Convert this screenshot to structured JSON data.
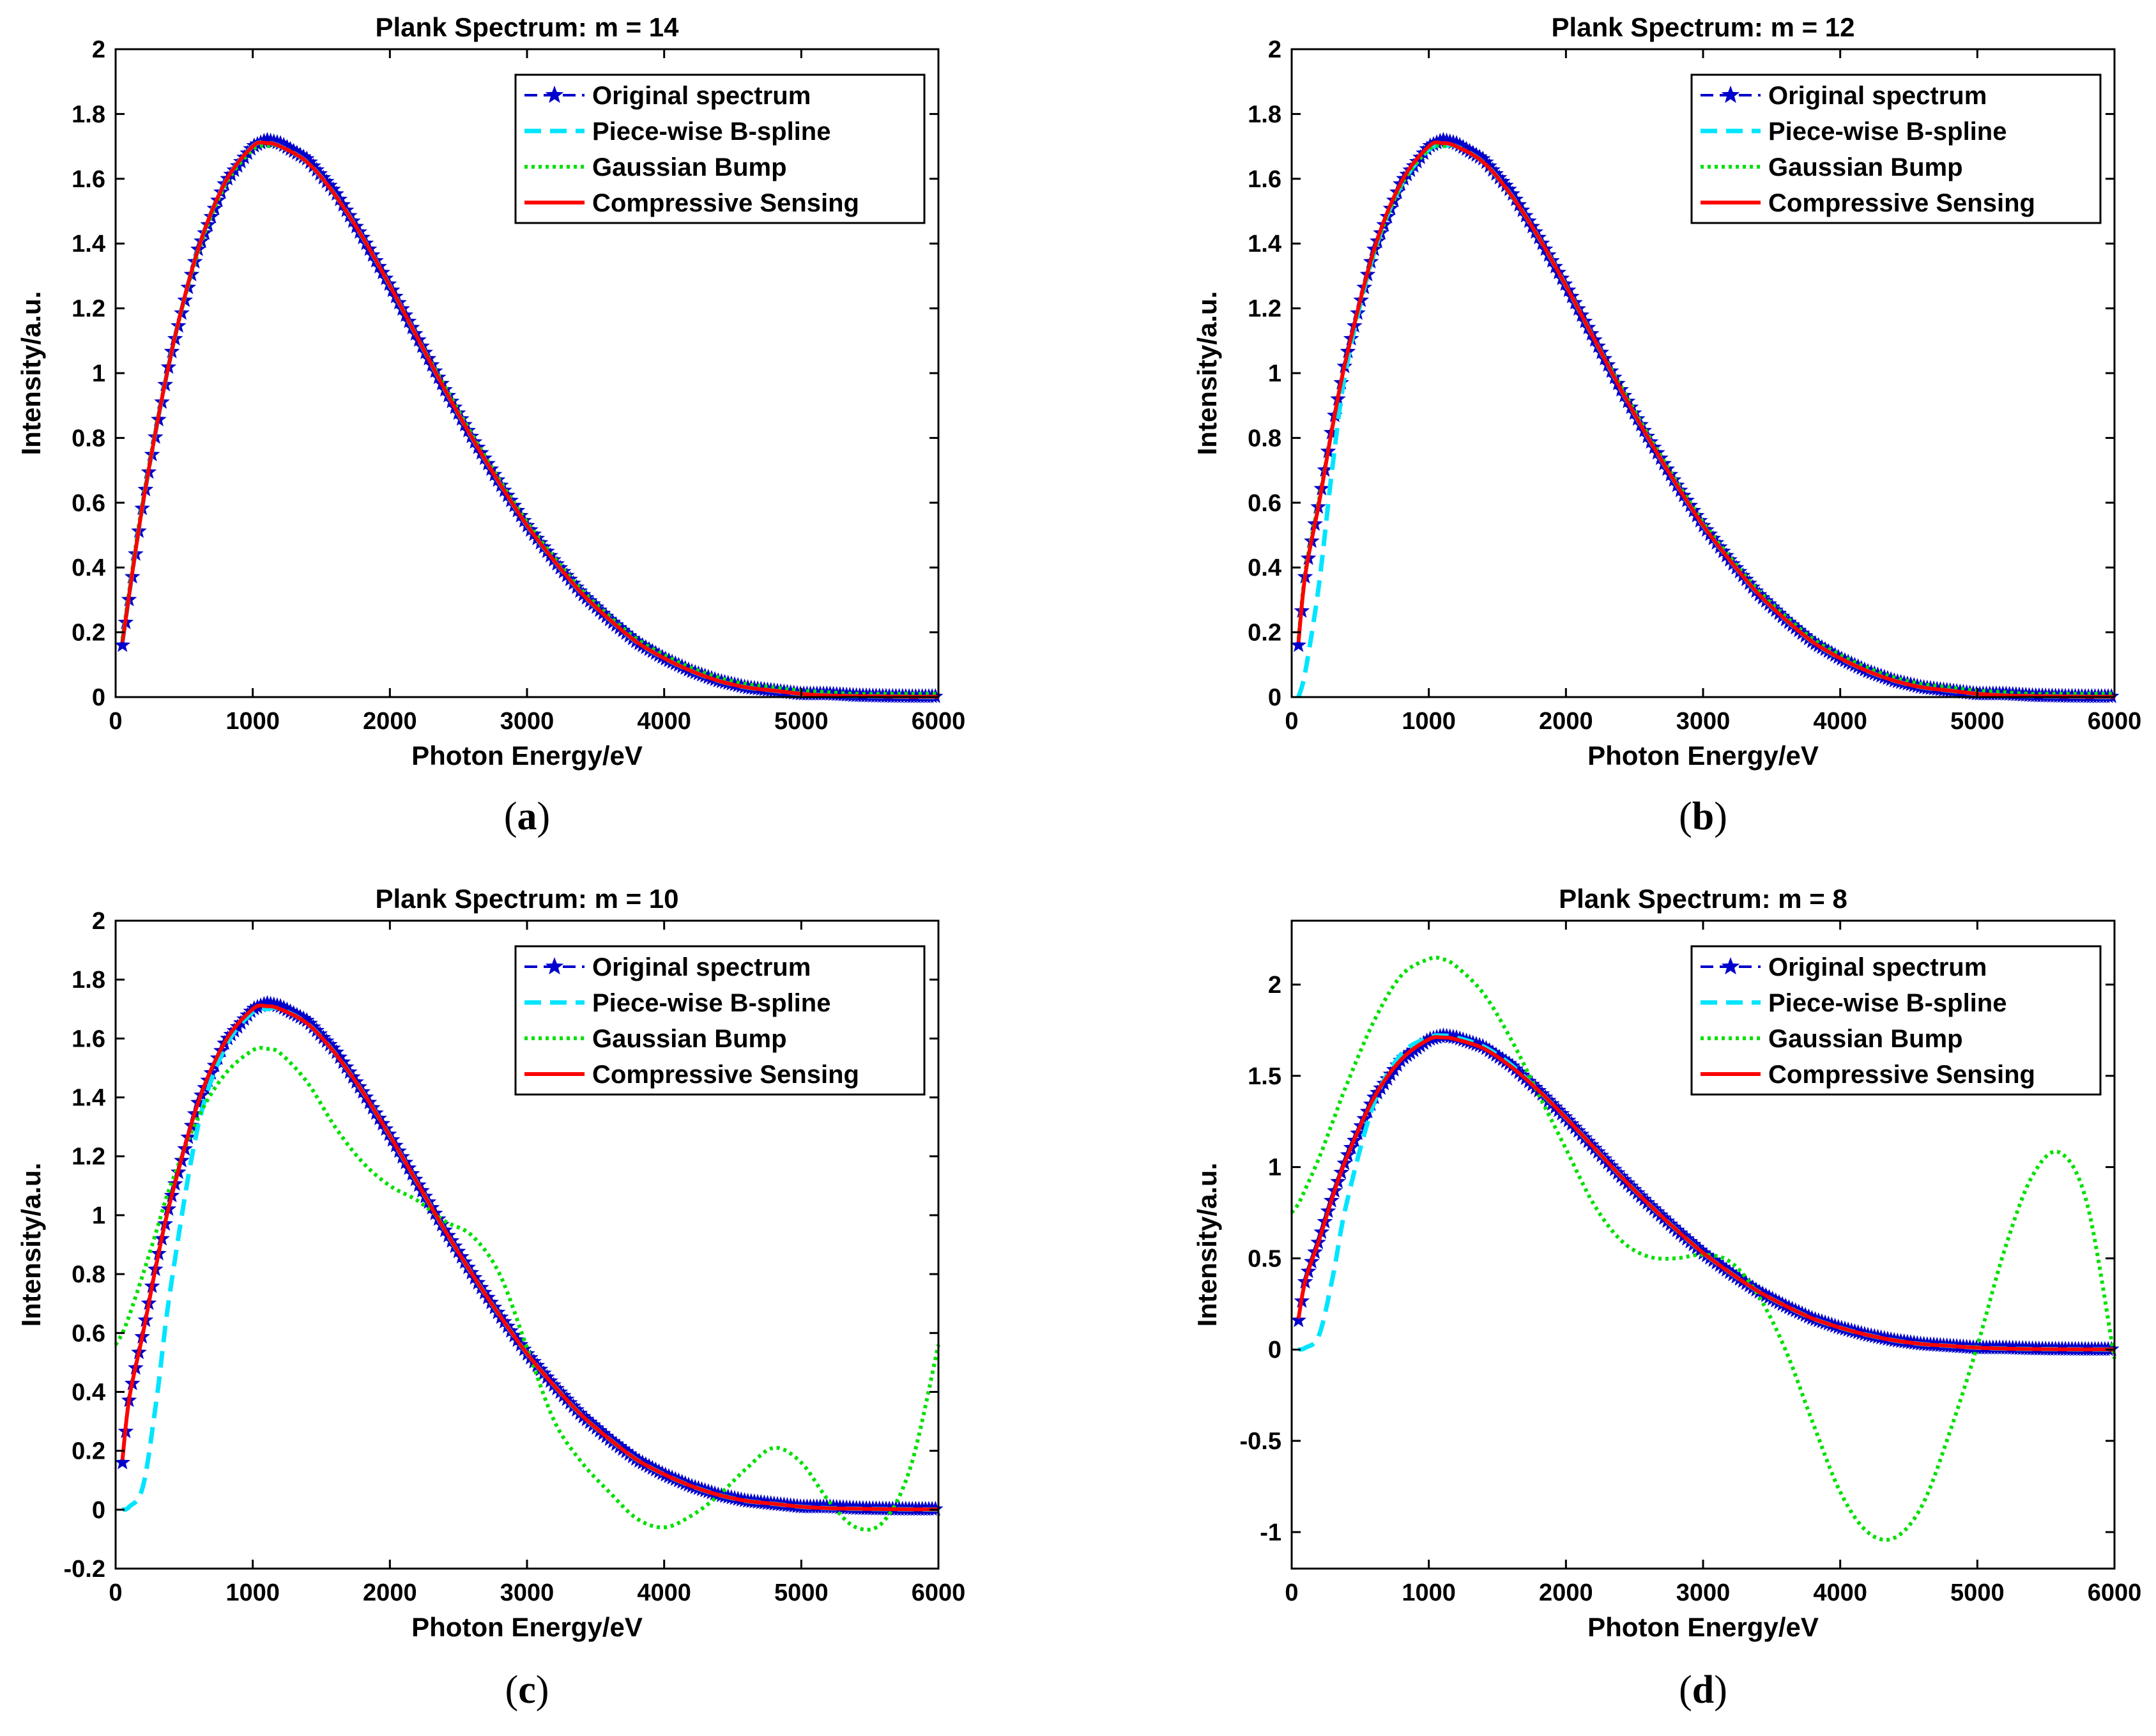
{
  "figure": {
    "colors": {
      "original": "#0000cc",
      "bspline": "#00e5ff",
      "gaussian": "#00e000",
      "cs": "#ff0000"
    }
  },
  "chart_data": [
    {
      "type": "line",
      "title": "Plank Spectrum: m = 14",
      "xlabel": "Photon Energy/eV",
      "ylabel": "Intensity/a.u.",
      "caption": "a",
      "xlim": [
        0,
        6000
      ],
      "ylim": [
        0,
        2
      ],
      "xticks": [
        0,
        1000,
        2000,
        3000,
        4000,
        5000,
        6000
      ],
      "yticks": [
        0,
        0.2,
        0.4,
        0.6,
        0.8,
        1,
        1.2,
        1.4,
        1.6,
        1.8,
        2
      ],
      "ytick_labels": [
        "0",
        "0.2",
        "0.4",
        "0.6",
        "0.8",
        "1",
        "1.2",
        "1.4",
        "1.6",
        "1.8",
        "2"
      ],
      "legend_position": "top-right",
      "x": [
        50,
        200,
        400,
        600,
        800,
        1000,
        1100,
        1200,
        1400,
        1600,
        1800,
        2000,
        2200,
        2400,
        2600,
        2800,
        3000,
        3200,
        3400,
        3600,
        3800,
        4000,
        4200,
        4400,
        4600,
        4800,
        5000,
        5200,
        5400,
        5600,
        5800,
        6000
      ],
      "series": [
        {
          "name": "Original spectrum",
          "key": "original",
          "values": [
            0.16,
            0.6,
            1.05,
            1.38,
            1.59,
            1.7,
            1.72,
            1.71,
            1.66,
            1.56,
            1.42,
            1.27,
            1.11,
            0.95,
            0.8,
            0.66,
            0.53,
            0.42,
            0.32,
            0.24,
            0.17,
            0.12,
            0.08,
            0.05,
            0.03,
            0.02,
            0.01,
            0.01,
            0.005,
            0.003,
            0.002,
            0.002
          ]
        },
        {
          "name": "Piece-wise B-spline",
          "key": "bspline",
          "values": [
            0.17,
            0.6,
            1.05,
            1.38,
            1.59,
            1.7,
            1.71,
            1.7,
            1.65,
            1.55,
            1.42,
            1.27,
            1.11,
            0.95,
            0.8,
            0.66,
            0.53,
            0.42,
            0.32,
            0.24,
            0.17,
            0.12,
            0.08,
            0.05,
            0.03,
            0.02,
            0.01,
            0.005,
            0.003,
            0.002,
            0.001,
            0.0
          ]
        },
        {
          "name": "Gaussian Bump",
          "key": "gaussian",
          "values": [
            0.18,
            0.61,
            1.05,
            1.37,
            1.58,
            1.69,
            1.7,
            1.7,
            1.65,
            1.55,
            1.42,
            1.27,
            1.11,
            0.96,
            0.81,
            0.67,
            0.54,
            0.43,
            0.33,
            0.25,
            0.18,
            0.13,
            0.09,
            0.06,
            0.04,
            0.03,
            0.02,
            0.015,
            0.01,
            0.01,
            0.01,
            0.01
          ]
        },
        {
          "name": "Compressive Sensing",
          "key": "cs",
          "values": [
            0.17,
            0.6,
            1.05,
            1.38,
            1.59,
            1.7,
            1.71,
            1.7,
            1.65,
            1.55,
            1.42,
            1.27,
            1.11,
            0.95,
            0.8,
            0.66,
            0.53,
            0.42,
            0.32,
            0.24,
            0.17,
            0.12,
            0.08,
            0.05,
            0.03,
            0.02,
            0.01,
            0.005,
            0.003,
            0.002,
            0.001,
            0.001
          ]
        }
      ]
    },
    {
      "type": "line",
      "title": "Plank Spectrum: m = 12",
      "xlabel": "Photon Energy/eV",
      "ylabel": "Intensity/a.u.",
      "caption": "b",
      "xlim": [
        0,
        6000
      ],
      "ylim": [
        0,
        2
      ],
      "xticks": [
        0,
        1000,
        2000,
        3000,
        4000,
        5000,
        6000
      ],
      "yticks": [
        0,
        0.2,
        0.4,
        0.6,
        0.8,
        1,
        1.2,
        1.4,
        1.6,
        1.8,
        2
      ],
      "ytick_labels": [
        "0",
        "0.2",
        "0.4",
        "0.6",
        "0.8",
        "1",
        "1.2",
        "1.4",
        "1.6",
        "1.8",
        "2"
      ],
      "legend_position": "top-right",
      "x": [
        50,
        100,
        200,
        300,
        400,
        600,
        800,
        1000,
        1100,
        1200,
        1400,
        1600,
        1800,
        2000,
        2200,
        2400,
        2600,
        2800,
        3000,
        3200,
        3400,
        3600,
        3800,
        4000,
        4200,
        4400,
        4600,
        4800,
        5000,
        5200,
        5400,
        5600,
        5800,
        6000
      ],
      "series": [
        {
          "name": "Original spectrum",
          "key": "original",
          "values": [
            0.16,
            0.38,
            0.6,
            0.84,
            1.05,
            1.38,
            1.59,
            1.7,
            1.72,
            1.71,
            1.66,
            1.56,
            1.42,
            1.27,
            1.11,
            0.95,
            0.8,
            0.66,
            0.53,
            0.42,
            0.32,
            0.24,
            0.17,
            0.12,
            0.08,
            0.05,
            0.03,
            0.02,
            0.01,
            0.01,
            0.005,
            0.003,
            0.002,
            0.002
          ]
        },
        {
          "name": "Piece-wise B-spline",
          "key": "bspline",
          "values": [
            0.0,
            0.08,
            0.35,
            0.72,
            1.02,
            1.37,
            1.58,
            1.69,
            1.7,
            1.7,
            1.65,
            1.55,
            1.42,
            1.27,
            1.11,
            0.95,
            0.8,
            0.66,
            0.53,
            0.42,
            0.32,
            0.24,
            0.17,
            0.12,
            0.08,
            0.05,
            0.03,
            0.02,
            0.01,
            0.005,
            0.003,
            0.002,
            0.001,
            0.0
          ]
        },
        {
          "name": "Gaussian Bump",
          "key": "gaussian",
          "values": [
            0.18,
            0.39,
            0.61,
            0.84,
            1.05,
            1.37,
            1.58,
            1.69,
            1.7,
            1.7,
            1.65,
            1.55,
            1.42,
            1.27,
            1.11,
            0.96,
            0.81,
            0.67,
            0.54,
            0.43,
            0.33,
            0.25,
            0.18,
            0.13,
            0.09,
            0.06,
            0.04,
            0.03,
            0.02,
            0.015,
            0.01,
            0.01,
            0.01,
            0.01
          ]
        },
        {
          "name": "Compressive Sensing",
          "key": "cs",
          "values": [
            0.17,
            0.38,
            0.6,
            0.84,
            1.05,
            1.38,
            1.59,
            1.7,
            1.71,
            1.7,
            1.65,
            1.55,
            1.42,
            1.27,
            1.11,
            0.95,
            0.8,
            0.66,
            0.53,
            0.42,
            0.32,
            0.24,
            0.17,
            0.12,
            0.08,
            0.05,
            0.03,
            0.02,
            0.01,
            0.005,
            0.003,
            0.002,
            0.001,
            0.001
          ]
        }
      ]
    },
    {
      "type": "line",
      "title": "Plank Spectrum: m = 10",
      "xlabel": "Photon Energy/eV",
      "ylabel": "Intensity/a.u.",
      "caption": "c",
      "xlim": [
        0,
        6000
      ],
      "ylim": [
        -0.2,
        2
      ],
      "xticks": [
        0,
        1000,
        2000,
        3000,
        4000,
        5000,
        6000
      ],
      "yticks": [
        -0.2,
        0,
        0.2,
        0.4,
        0.6,
        0.8,
        1,
        1.2,
        1.4,
        1.6,
        1.8,
        2
      ],
      "ytick_labels": [
        "-0.2",
        "0",
        "0.2",
        "0.4",
        "0.6",
        "0.8",
        "1",
        "1.2",
        "1.4",
        "1.6",
        "1.8",
        "2"
      ],
      "legend_position": "top-right",
      "x": [
        0,
        50,
        100,
        200,
        300,
        400,
        600,
        800,
        1000,
        1100,
        1200,
        1400,
        1600,
        1800,
        2000,
        2200,
        2400,
        2600,
        2800,
        3000,
        3200,
        3400,
        3600,
        3800,
        4000,
        4200,
        4400,
        4600,
        4800,
        5000,
        5200,
        5400,
        5600,
        5800,
        6000
      ],
      "series": [
        {
          "name": "Original spectrum",
          "key": "original",
          "values": [
            null,
            0.16,
            0.38,
            0.6,
            0.84,
            1.05,
            1.38,
            1.59,
            1.7,
            1.72,
            1.71,
            1.66,
            1.56,
            1.42,
            1.27,
            1.11,
            0.95,
            0.8,
            0.66,
            0.53,
            0.42,
            0.32,
            0.24,
            0.17,
            0.12,
            0.08,
            0.05,
            0.03,
            0.02,
            0.01,
            0.01,
            0.005,
            0.003,
            0.002,
            0.002
          ]
        },
        {
          "name": "Piece-wise B-spline",
          "key": "bspline",
          "values": [
            null,
            0.0,
            0.01,
            0.08,
            0.38,
            0.75,
            1.3,
            1.57,
            1.69,
            1.7,
            1.7,
            1.65,
            1.55,
            1.42,
            1.27,
            1.11,
            0.95,
            0.8,
            0.66,
            0.53,
            0.42,
            0.32,
            0.24,
            0.17,
            0.12,
            0.08,
            0.05,
            0.03,
            0.02,
            0.01,
            0.005,
            0.003,
            0.002,
            0.001,
            0.0
          ]
        },
        {
          "name": "Gaussian Bump",
          "key": "gaussian",
          "values": [
            0.56,
            0.6,
            0.66,
            0.8,
            0.95,
            1.1,
            1.33,
            1.48,
            1.56,
            1.565,
            1.55,
            1.45,
            1.3,
            1.18,
            1.1,
            1.05,
            0.98,
            0.93,
            0.8,
            0.55,
            0.3,
            0.16,
            0.06,
            -0.03,
            -0.06,
            -0.02,
            0.05,
            0.14,
            0.21,
            0.16,
            0.03,
            -0.06,
            -0.04,
            0.15,
            0.56
          ]
        },
        {
          "name": "Compressive Sensing",
          "key": "cs",
          "values": [
            null,
            0.17,
            0.38,
            0.6,
            0.84,
            1.05,
            1.38,
            1.59,
            1.7,
            1.71,
            1.7,
            1.65,
            1.55,
            1.42,
            1.27,
            1.11,
            0.95,
            0.8,
            0.66,
            0.53,
            0.42,
            0.32,
            0.24,
            0.17,
            0.12,
            0.08,
            0.05,
            0.03,
            0.02,
            0.01,
            0.005,
            0.003,
            0.002,
            0.001,
            0.001
          ]
        }
      ]
    },
    {
      "type": "line",
      "title": "Plank Spectrum: m = 8",
      "xlabel": "Photon Energy/eV",
      "ylabel": "Intensity/a.u.",
      "caption": "d",
      "xlim": [
        0,
        6000
      ],
      "ylim": [
        -1.2,
        2.35
      ],
      "xticks": [
        0,
        1000,
        2000,
        3000,
        4000,
        5000,
        6000
      ],
      "yticks": [
        -1,
        -0.5,
        0,
        0.5,
        1,
        1.5,
        2
      ],
      "ytick_labels": [
        "-1",
        "-0.5",
        "0",
        "0.5",
        "1",
        "1.5",
        "2"
      ],
      "legend_position": "top-right",
      "x": [
        0,
        50,
        100,
        200,
        300,
        400,
        600,
        800,
        1000,
        1100,
        1200,
        1400,
        1600,
        1800,
        2000,
        2200,
        2400,
        2600,
        2800,
        3000,
        3200,
        3400,
        3600,
        3800,
        4000,
        4200,
        4400,
        4600,
        4800,
        5000,
        5200,
        5400,
        5600,
        5800,
        6000
      ],
      "series": [
        {
          "name": "Original spectrum",
          "key": "original",
          "values": [
            null,
            0.16,
            0.38,
            0.6,
            0.84,
            1.05,
            1.38,
            1.59,
            1.7,
            1.72,
            1.71,
            1.66,
            1.56,
            1.42,
            1.27,
            1.11,
            0.95,
            0.8,
            0.66,
            0.53,
            0.42,
            0.32,
            0.24,
            0.17,
            0.12,
            0.08,
            0.05,
            0.03,
            0.02,
            0.01,
            0.01,
            0.005,
            0.003,
            0.002,
            0.002
          ]
        },
        {
          "name": "Piece-wise B-spline",
          "key": "bspline",
          "values": [
            null,
            0.0,
            0.01,
            0.08,
            0.4,
            0.8,
            1.35,
            1.62,
            1.71,
            1.72,
            1.71,
            1.66,
            1.56,
            1.42,
            1.27,
            1.11,
            0.95,
            0.8,
            0.66,
            0.53,
            0.42,
            0.32,
            0.24,
            0.17,
            0.12,
            0.08,
            0.05,
            0.03,
            0.02,
            0.01,
            0.005,
            0.003,
            0.002,
            0.001,
            0.0
          ]
        },
        {
          "name": "Gaussian Bump",
          "key": "gaussian",
          "values": [
            0.75,
            0.8,
            0.88,
            1.05,
            1.25,
            1.45,
            1.8,
            2.05,
            2.14,
            2.14,
            2.1,
            1.95,
            1.7,
            1.4,
            1.1,
            0.8,
            0.6,
            0.51,
            0.5,
            0.52,
            0.48,
            0.3,
            0.0,
            -0.4,
            -0.78,
            -1.0,
            -1.03,
            -0.85,
            -0.45,
            0.02,
            0.55,
            0.95,
            1.08,
            0.8,
            -0.05
          ]
        },
        {
          "name": "Compressive Sensing",
          "key": "cs",
          "values": [
            null,
            0.17,
            0.38,
            0.6,
            0.84,
            1.05,
            1.38,
            1.59,
            1.7,
            1.71,
            1.7,
            1.65,
            1.55,
            1.42,
            1.27,
            1.11,
            0.95,
            0.8,
            0.66,
            0.53,
            0.42,
            0.32,
            0.24,
            0.17,
            0.12,
            0.08,
            0.05,
            0.03,
            0.02,
            0.01,
            0.005,
            0.003,
            0.002,
            0.001,
            0.001
          ]
        }
      ]
    }
  ]
}
